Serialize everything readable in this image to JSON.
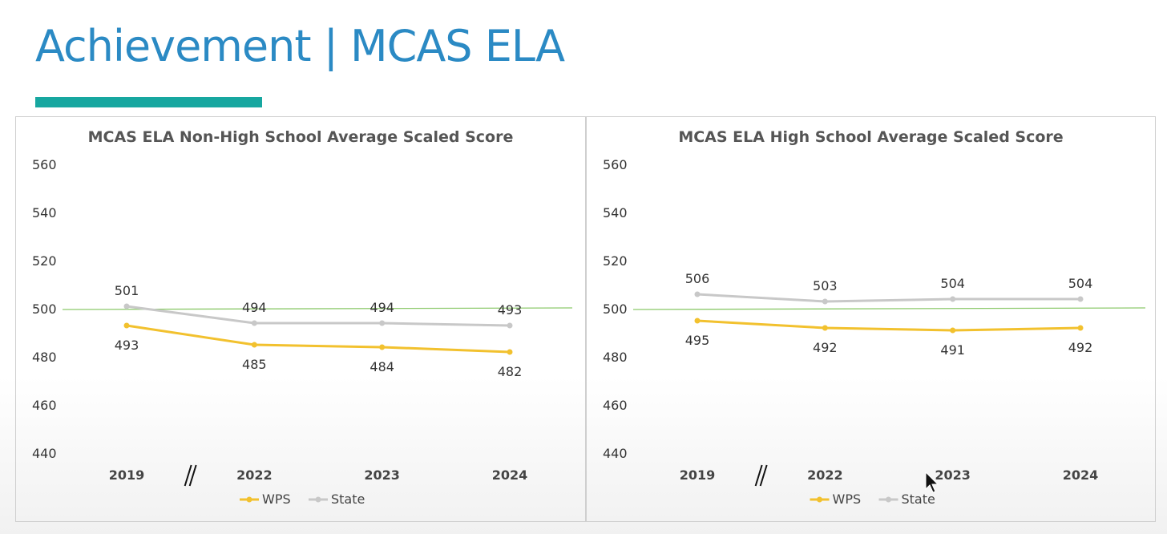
{
  "slide": {
    "title": "Achievement | MCAS ELA"
  },
  "colors": {
    "title": "#2b8ac4",
    "accent_bar": "#17a7a0",
    "wps_series": "#f2c12e",
    "state_series": "#c8c8c8",
    "reference_line": "#8cc96b"
  },
  "chart_data": [
    {
      "type": "line",
      "title": "MCAS ELA Non-High School Average Scaled Score",
      "xlabel": "",
      "ylabel": "",
      "categories": [
        "2019",
        "2022",
        "2023",
        "2024"
      ],
      "ylim": [
        440,
        560
      ],
      "yticks": [
        "560",
        "540",
        "520",
        "500",
        "480",
        "460",
        "440"
      ],
      "axis_break_marker": "//",
      "reference_line": 500,
      "series": [
        {
          "name": "WPS",
          "values": [
            493,
            485,
            484,
            482
          ],
          "labels": [
            "493",
            "485",
            "484",
            "482"
          ],
          "color": "#f2c12e",
          "label_position": "below"
        },
        {
          "name": "State",
          "values": [
            501,
            494,
            494,
            493
          ],
          "labels": [
            "501",
            "494",
            "494",
            "493"
          ],
          "color": "#c8c8c8",
          "label_position": "above"
        }
      ],
      "legend": "bottom",
      "grid": false
    },
    {
      "type": "line",
      "title": "MCAS ELA High School Average Scaled Score",
      "xlabel": "",
      "ylabel": "",
      "categories": [
        "2019",
        "2022",
        "2023",
        "2024"
      ],
      "ylim": [
        440,
        560
      ],
      "yticks": [
        "560",
        "540",
        "520",
        "500",
        "480",
        "460",
        "440"
      ],
      "axis_break_marker": "//",
      "reference_line": 500,
      "series": [
        {
          "name": "WPS",
          "values": [
            495,
            492,
            491,
            492
          ],
          "labels": [
            "495",
            "492",
            "491",
            "492"
          ],
          "color": "#f2c12e",
          "label_position": "below"
        },
        {
          "name": "State",
          "values": [
            506,
            503,
            504,
            504
          ],
          "labels": [
            "506",
            "503",
            "504",
            "504"
          ],
          "color": "#c8c8c8",
          "label_position": "above"
        }
      ],
      "legend": "bottom",
      "grid": false
    }
  ]
}
